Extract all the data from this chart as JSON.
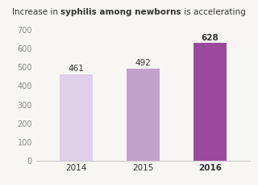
{
  "categories": [
    "2014",
    "2015",
    "2016"
  ],
  "values": [
    461,
    492,
    628
  ],
  "bar_colors": [
    "#ddd0e8",
    "#c4a0cc",
    "#9b4a9b"
  ],
  "title_part1": "Increase in ",
  "title_bold": "syphilis among newborns",
  "title_part2": " is accelerating",
  "ylim": [
    0,
    700
  ],
  "yticks": [
    0,
    100,
    200,
    300,
    400,
    500,
    600,
    700
  ],
  "bar_width": 0.5,
  "x_bold": [
    false,
    false,
    true
  ],
  "bg_color": "#f7f6f3",
  "text_color": "#333333",
  "axis_color": "#cccccc",
  "tick_color": "#888888",
  "value_fontsize": 7.5,
  "title_fontsize": 7.5,
  "tick_fontsize": 7
}
